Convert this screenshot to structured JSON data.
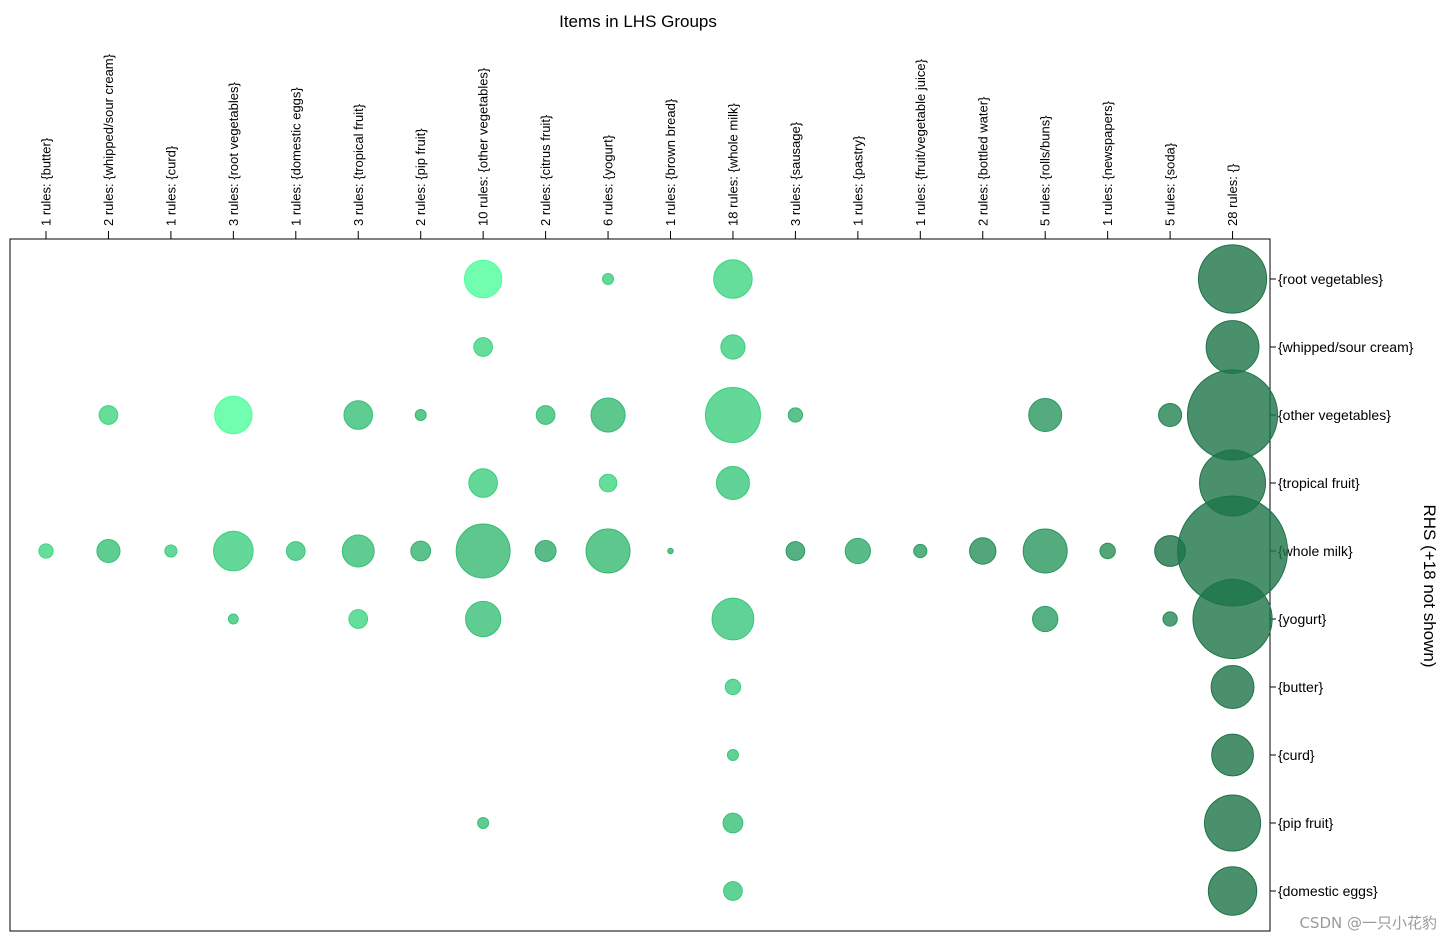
{
  "chart_data": {
    "type": "scatter",
    "title": "Items in LHS Groups",
    "ylabel": "RHS (+18 not shown)",
    "columns": [
      "1 rules: {butter}",
      "2 rules: {whipped/sour cream}",
      "1 rules: {curd}",
      "3 rules: {root vegetables}",
      "1 rules: {domestic eggs}",
      "3 rules: {tropical fruit}",
      "2 rules: {pip fruit}",
      "10 rules: {other vegetables}",
      "2 rules: {citrus fruit}",
      "6 rules: {yogurt}",
      "1 rules: {brown bread}",
      "18 rules: {whole milk}",
      "3 rules: {sausage}",
      "1 rules: {pastry}",
      "1 rules: {fruit/vegetable juice}",
      "2 rules: {bottled water}",
      "5 rules: {rolls/buns}",
      "1 rules: {newspapers}",
      "5 rules: {soda}",
      "28 rules: {}"
    ],
    "rows": [
      "{root vegetables}",
      "{whipped/sour cream}",
      "{other vegetables}",
      "{tropical fruit}",
      "{whole milk}",
      "{yogurt}",
      "{butter}",
      "{curd}",
      "{pip fruit}",
      "{domestic eggs}"
    ],
    "points": [
      {
        "col": 7,
        "row": 0,
        "size": 0.34,
        "shade": 0.0
      },
      {
        "col": 9,
        "row": 0,
        "size": 0.1,
        "shade": 0.35
      },
      {
        "col": 11,
        "row": 0,
        "size": 0.35,
        "shade": 0.3
      },
      {
        "col": 19,
        "row": 0,
        "size": 0.62,
        "shade": 1.0
      },
      {
        "col": 7,
        "row": 1,
        "size": 0.17,
        "shade": 0.3
      },
      {
        "col": 11,
        "row": 1,
        "size": 0.22,
        "shade": 0.35
      },
      {
        "col": 19,
        "row": 1,
        "size": 0.48,
        "shade": 1.0
      },
      {
        "col": 1,
        "row": 2,
        "size": 0.17,
        "shade": 0.3
      },
      {
        "col": 3,
        "row": 2,
        "size": 0.34,
        "shade": 0.0
      },
      {
        "col": 5,
        "row": 2,
        "size": 0.26,
        "shade": 0.45
      },
      {
        "col": 6,
        "row": 2,
        "size": 0.1,
        "shade": 0.5
      },
      {
        "col": 8,
        "row": 2,
        "size": 0.17,
        "shade": 0.45
      },
      {
        "col": 9,
        "row": 2,
        "size": 0.31,
        "shade": 0.5
      },
      {
        "col": 11,
        "row": 2,
        "size": 0.5,
        "shade": 0.35
      },
      {
        "col": 12,
        "row": 2,
        "size": 0.13,
        "shade": 0.55
      },
      {
        "col": 16,
        "row": 2,
        "size": 0.3,
        "shade": 0.75
      },
      {
        "col": 18,
        "row": 2,
        "size": 0.21,
        "shade": 0.9
      },
      {
        "col": 19,
        "row": 2,
        "size": 0.82,
        "shade": 1.0
      },
      {
        "col": 7,
        "row": 3,
        "size": 0.26,
        "shade": 0.35
      },
      {
        "col": 9,
        "row": 3,
        "size": 0.16,
        "shade": 0.3
      },
      {
        "col": 11,
        "row": 3,
        "size": 0.3,
        "shade": 0.4
      },
      {
        "col": 19,
        "row": 3,
        "size": 0.6,
        "shade": 1.0
      },
      {
        "col": 0,
        "row": 4,
        "size": 0.13,
        "shade": 0.3
      },
      {
        "col": 1,
        "row": 4,
        "size": 0.21,
        "shade": 0.45
      },
      {
        "col": 2,
        "row": 4,
        "size": 0.11,
        "shade": 0.35
      },
      {
        "col": 3,
        "row": 4,
        "size": 0.36,
        "shade": 0.35
      },
      {
        "col": 4,
        "row": 4,
        "size": 0.17,
        "shade": 0.4
      },
      {
        "col": 5,
        "row": 4,
        "size": 0.29,
        "shade": 0.45
      },
      {
        "col": 6,
        "row": 4,
        "size": 0.18,
        "shade": 0.55
      },
      {
        "col": 7,
        "row": 4,
        "size": 0.49,
        "shade": 0.5
      },
      {
        "col": 8,
        "row": 4,
        "size": 0.19,
        "shade": 0.6
      },
      {
        "col": 9,
        "row": 4,
        "size": 0.4,
        "shade": 0.5
      },
      {
        "col": 10,
        "row": 4,
        "size": 0.05,
        "shade": 0.55
      },
      {
        "col": 12,
        "row": 4,
        "size": 0.17,
        "shade": 0.7
      },
      {
        "col": 13,
        "row": 4,
        "size": 0.23,
        "shade": 0.6
      },
      {
        "col": 14,
        "row": 4,
        "size": 0.12,
        "shade": 0.7
      },
      {
        "col": 15,
        "row": 4,
        "size": 0.24,
        "shade": 0.8
      },
      {
        "col": 16,
        "row": 4,
        "size": 0.4,
        "shade": 0.75
      },
      {
        "col": 17,
        "row": 4,
        "size": 0.14,
        "shade": 0.8
      },
      {
        "col": 18,
        "row": 4,
        "size": 0.28,
        "shade": 1.0
      },
      {
        "col": 19,
        "row": 4,
        "size": 1.0,
        "shade": 1.0
      },
      {
        "col": 3,
        "row": 5,
        "size": 0.09,
        "shade": 0.4
      },
      {
        "col": 5,
        "row": 5,
        "size": 0.17,
        "shade": 0.3
      },
      {
        "col": 7,
        "row": 5,
        "size": 0.32,
        "shade": 0.45
      },
      {
        "col": 11,
        "row": 5,
        "size": 0.38,
        "shade": 0.4
      },
      {
        "col": 16,
        "row": 5,
        "size": 0.23,
        "shade": 0.7
      },
      {
        "col": 18,
        "row": 5,
        "size": 0.13,
        "shade": 0.85
      },
      {
        "col": 19,
        "row": 5,
        "size": 0.72,
        "shade": 1.0
      },
      {
        "col": 11,
        "row": 6,
        "size": 0.14,
        "shade": 0.35
      },
      {
        "col": 19,
        "row": 6,
        "size": 0.39,
        "shade": 1.0
      },
      {
        "col": 11,
        "row": 7,
        "size": 0.1,
        "shade": 0.4
      },
      {
        "col": 19,
        "row": 7,
        "size": 0.38,
        "shade": 1.0
      },
      {
        "col": 7,
        "row": 8,
        "size": 0.1,
        "shade": 0.45
      },
      {
        "col": 11,
        "row": 8,
        "size": 0.18,
        "shade": 0.45
      },
      {
        "col": 19,
        "row": 8,
        "size": 0.51,
        "shade": 1.0
      },
      {
        "col": 11,
        "row": 9,
        "size": 0.17,
        "shade": 0.4
      },
      {
        "col": 19,
        "row": 9,
        "size": 0.44,
        "shade": 1.0
      }
    ],
    "colors": {
      "light": "#4dfe9b",
      "dark": "#1d7449"
    },
    "grid": false,
    "legend": "none"
  },
  "watermark": "CSDN @一只小花豹"
}
